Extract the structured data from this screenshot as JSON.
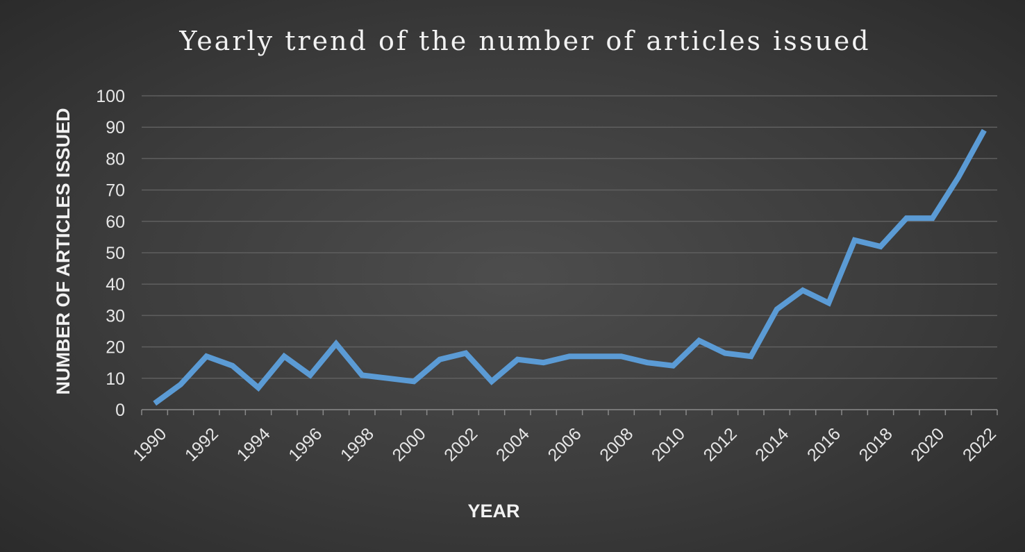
{
  "chart_data": {
    "type": "line",
    "title": "Yearly trend of the number of articles issued",
    "xlabel": "YEAR",
    "ylabel": "NUMBER OF ARTICLES ISSUED",
    "ylim": [
      0,
      100
    ],
    "yticks": [
      0,
      10,
      20,
      30,
      40,
      50,
      60,
      70,
      80,
      90,
      100
    ],
    "x": [
      1990,
      1991,
      1992,
      1993,
      1994,
      1995,
      1996,
      1997,
      1998,
      1999,
      2000,
      2001,
      2002,
      2003,
      2004,
      2005,
      2006,
      2007,
      2008,
      2009,
      2010,
      2011,
      2012,
      2013,
      2014,
      2015,
      2016,
      2017,
      2018,
      2019,
      2020,
      2021,
      2022
    ],
    "xtick_labels": [
      "1990",
      "1992",
      "1994",
      "1996",
      "1998",
      "2000",
      "2002",
      "2004",
      "2006",
      "2008",
      "2010",
      "2012",
      "2014",
      "2016",
      "2018",
      "2020",
      "2022"
    ],
    "series": [
      {
        "values": [
          2,
          8,
          17,
          14,
          7,
          17,
          11,
          21,
          11,
          10,
          9,
          16,
          18,
          9,
          16,
          15,
          17,
          17,
          17,
          15,
          14,
          22,
          18,
          17,
          32,
          38,
          34,
          54,
          52,
          61,
          61,
          74,
          89
        ],
        "color": "#5b9bd5"
      }
    ],
    "grid": true,
    "legend": "none"
  }
}
